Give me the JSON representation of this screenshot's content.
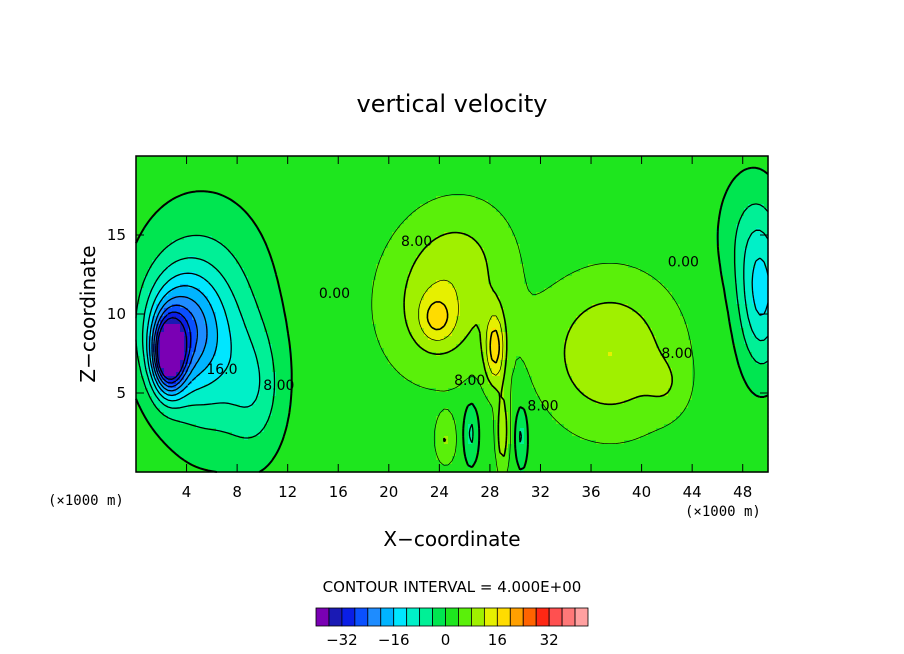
{
  "chart_data": {
    "type": "contour",
    "title": "vertical velocity",
    "xlabel": "X−coordinate",
    "ylabel": "Z−coordinate",
    "x_unit_left": "(×1000 m)",
    "x_unit_right": "(×1000 m)",
    "xlim": [
      0,
      50
    ],
    "ylim": [
      0,
      20
    ],
    "x_ticks": [
      4,
      8,
      12,
      16,
      20,
      24,
      28,
      32,
      36,
      40,
      44,
      48
    ],
    "y_ticks": [
      5,
      10,
      15
    ],
    "contour_interval_text": "CONTOUR INTERVAL = 4.000E+00",
    "contour_labels": [
      {
        "text": "8.00",
        "x": 22.2,
        "y": 14.3
      },
      {
        "text": "0.00",
        "x": 15.7,
        "y": 11.0
      },
      {
        "text": "0.00",
        "x": 43.3,
        "y": 13.0
      },
      {
        "text": "8.00",
        "x": 42.8,
        "y": 7.2
      },
      {
        "text": "16.0",
        "x": 6.8,
        "y": 6.2
      },
      {
        "text": "8.00",
        "x": 11.3,
        "y": 5.2
      },
      {
        "text": "8.00",
        "x": 26.4,
        "y": 5.5
      },
      {
        "text": "8.00",
        "x": 32.2,
        "y": 3.9
      }
    ],
    "field_features": [
      {
        "x": 2.6,
        "y": 7.4,
        "sx": 1.2,
        "sy": 2.2,
        "amp": -34
      },
      {
        "x": 3.4,
        "y": 9.0,
        "sx": 2.8,
        "sy": 3.6,
        "amp": -18
      },
      {
        "x": 6.0,
        "y": 7.5,
        "sx": 4.0,
        "sy": 5.6,
        "amp": -11
      },
      {
        "x": 9.5,
        "y": 5.0,
        "sx": 2.2,
        "sy": 4.0,
        "amp": -6
      },
      {
        "x": 5.0,
        "y": 13.0,
        "sx": 5.0,
        "sy": 5.0,
        "amp": -4
      },
      {
        "x": 49.5,
        "y": 11.0,
        "sx": 1.8,
        "sy": 4.5,
        "amp": -14
      },
      {
        "x": 48.5,
        "y": 15.0,
        "sx": 2.5,
        "sy": 4.0,
        "amp": -5
      },
      {
        "x": 24.0,
        "y": 10.5,
        "sx": 4.5,
        "sy": 4.5,
        "amp": 8
      },
      {
        "x": 23.8,
        "y": 9.7,
        "sx": 1.4,
        "sy": 1.5,
        "amp": 8
      },
      {
        "x": 28.4,
        "y": 7.8,
        "sx": 0.8,
        "sy": 2.3,
        "amp": 14
      },
      {
        "x": 26.0,
        "y": 14.0,
        "sx": 4.0,
        "sy": 3.5,
        "amp": 4
      },
      {
        "x": 37.5,
        "y": 7.5,
        "sx": 5.0,
        "sy": 4.5,
        "amp": 10
      },
      {
        "x": 42.0,
        "y": 5.5,
        "sx": 1.6,
        "sy": 1.8,
        "amp": 3
      },
      {
        "x": 26.5,
        "y": 2.5,
        "sx": 0.6,
        "sy": 2.0,
        "amp": -7
      },
      {
        "x": 30.5,
        "y": 2.3,
        "sx": 0.5,
        "sy": 2.0,
        "amp": -7
      },
      {
        "x": 24.5,
        "y": 2.0,
        "sx": 0.8,
        "sy": 1.5,
        "amp": 6
      },
      {
        "x": 29.0,
        "y": 2.5,
        "sx": 0.5,
        "sy": 2.5,
        "amp": 9
      }
    ],
    "colorbar": {
      "levels": [
        -36,
        -32,
        -28,
        -24,
        -20,
        -16,
        -12,
        -8,
        -4,
        0,
        4,
        8,
        12,
        16,
        20,
        24,
        28,
        32,
        36
      ],
      "tick_labels": [
        "−32",
        "−16",
        "0",
        "16",
        "32"
      ],
      "tick_values": [
        -32,
        -16,
        0,
        16,
        32
      ],
      "colors": [
        "#7a00b4",
        "#1a1ab4",
        "#0a1ee6",
        "#0a50ff",
        "#1e8cff",
        "#00b4ff",
        "#00e6ff",
        "#00f0c8",
        "#00f096",
        "#00e650",
        "#1ee61e",
        "#5af00a",
        "#a0f000",
        "#e6f000",
        "#ffdc00",
        "#ffa000",
        "#ff6400",
        "#ff2814",
        "#ff5050",
        "#ff7878",
        "#ffa0a0"
      ]
    }
  }
}
